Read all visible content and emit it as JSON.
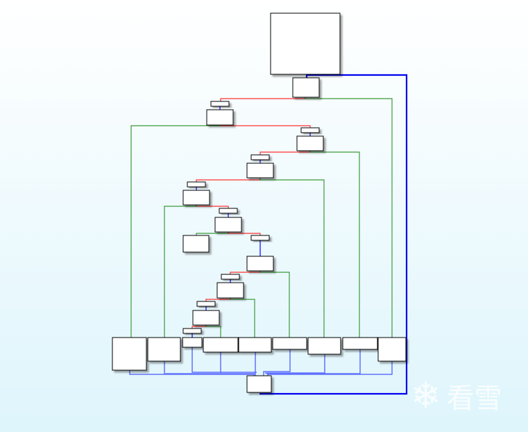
{
  "graph": {
    "type": "control-flow-graph",
    "edge_colors": {
      "true_branch": "#3a9a3a",
      "false_branch": "#ff3030",
      "unconditional": "#0000ff"
    }
  },
  "watermark": {
    "text": "看雪",
    "icon": "snowflake-icon"
  }
}
